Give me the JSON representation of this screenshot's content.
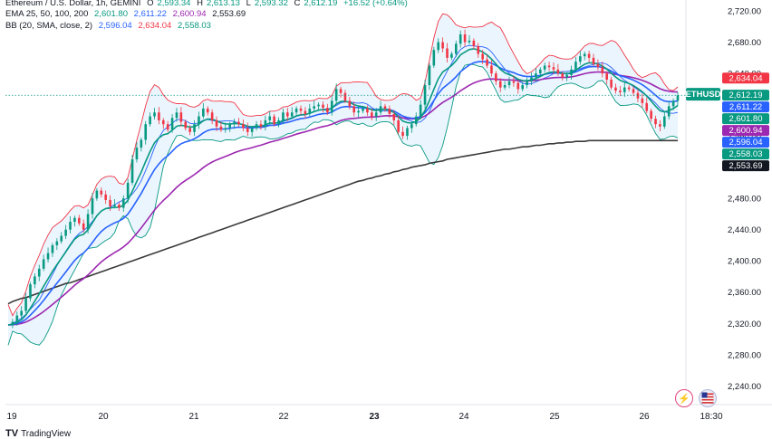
{
  "header": {
    "symbol_line": "Ethereum / U.S. Dollar, 1h, GEMINI",
    "ohlc": {
      "o_label": "O",
      "o": "2,593.34",
      "h_label": "H",
      "h": "2,613.13",
      "l_label": "L",
      "l": "2,593.32",
      "c_label": "C",
      "c": "2,612.19",
      "change": "+16.52 (+0.64%)"
    },
    "ema_line": {
      "label": "EMA 25, 50, 100, 200",
      "v1": "2,601.80",
      "v2": "2,611.22",
      "v3": "2,600.94",
      "v4": "2,553.69"
    },
    "bb_line": {
      "label": "BB (20, SMA, close, 2)",
      "v1": "2,596.04",
      "v2": "2,634.04",
      "v3": "2,558.03"
    }
  },
  "brand": {
    "name": "TradingView",
    "logo": "TV"
  },
  "icons": [
    "lightning-icon",
    "flag-us-icon"
  ],
  "colors": {
    "up": "#089981",
    "down": "#f23645",
    "ema25": "#089981",
    "ema50": "#2962ff",
    "ema100": "#9c27b0",
    "ema200": "#3a3a3a",
    "bb_upper": "#f23645",
    "bb_lower": "#089981",
    "bb_basis": "#2962ff",
    "bb_fill": "#e3f2fd"
  },
  "chart_data": {
    "type": "candlestick",
    "symbol": "ETHUSD",
    "x_ticks": [
      "19",
      "20",
      "21",
      "22",
      "23",
      "24",
      "25",
      "26",
      "18:30"
    ],
    "y_ticks": [
      "2,720.00",
      "2,680.00",
      "2,640.00",
      "2,600.00",
      "2,560.00",
      "2,520.00",
      "2,480.00",
      "2,440.00",
      "2,400.00",
      "2,360.00",
      "2,320.00",
      "2,280.00",
      "2,240.00"
    ],
    "ylim": [
      2216,
      2734
    ],
    "price_labels": [
      {
        "text": "2,634.04",
        "value": 2634.04,
        "color": "#f23645"
      },
      {
        "text": "ETHUSD",
        "value": 2612.19,
        "color": "#089981",
        "symbol": true
      },
      {
        "text": "2,612.19",
        "value": 2612.19,
        "color": "#089981"
      },
      {
        "text": "2,611.22",
        "value": 2611.22,
        "color": "#2962ff"
      },
      {
        "text": "2,601.80",
        "value": 2601.8,
        "color": "#089981"
      },
      {
        "text": "2,600.94",
        "value": 2600.94,
        "color": "#9c27b0"
      },
      {
        "text": "2,596.04",
        "value": 2596.04,
        "color": "#2962ff"
      },
      {
        "text": "2,558.03",
        "value": 2558.03,
        "color": "#089981"
      },
      {
        "text": "2,553.69",
        "value": 2553.69,
        "color": "#131722"
      }
    ],
    "close": [
      2318,
      2322,
      2330,
      2336,
      2352,
      2370,
      2380,
      2390,
      2402,
      2410,
      2420,
      2425,
      2432,
      2440,
      2450,
      2455,
      2448,
      2440,
      2460,
      2480,
      2490,
      2485,
      2478,
      2470,
      2472,
      2468,
      2480,
      2500,
      2530,
      2545,
      2555,
      2575,
      2585,
      2590,
      2580,
      2575,
      2568,
      2583,
      2590,
      2578,
      2570,
      2565,
      2575,
      2585,
      2595,
      2590,
      2580,
      2572,
      2568,
      2570,
      2575,
      2578,
      2575,
      2570,
      2565,
      2570,
      2575,
      2572,
      2580,
      2585,
      2575,
      2580,
      2590,
      2585,
      2590,
      2595,
      2592,
      2588,
      2595,
      2598,
      2600,
      2596,
      2590,
      2605,
      2620,
      2615,
      2605,
      2598,
      2590,
      2592,
      2595,
      2590,
      2585,
      2590,
      2598,
      2595,
      2588,
      2580,
      2565,
      2560,
      2570,
      2575,
      2585,
      2600,
      2625,
      2650,
      2670,
      2680,
      2672,
      2660,
      2665,
      2678,
      2690,
      2680,
      2682,
      2675,
      2665,
      2658,
      2650,
      2640,
      2630,
      2622,
      2625,
      2630,
      2628,
      2620,
      2625,
      2630,
      2635,
      2640,
      2645,
      2650,
      2648,
      2645,
      2640,
      2635,
      2638,
      2645,
      2655,
      2662,
      2665,
      2660,
      2652,
      2648,
      2640,
      2632,
      2622,
      2618,
      2616,
      2622,
      2620,
      2615,
      2608,
      2602,
      2592,
      2582,
      2575,
      2572,
      2585,
      2598,
      2605,
      2612
    ],
    "ema200": [
      2345,
      2348,
      2350,
      2352,
      2353,
      2355,
      2357,
      2359,
      2361,
      2363,
      2365,
      2367,
      2369,
      2371,
      2372,
      2374,
      2376,
      2378,
      2380,
      2382,
      2384,
      2386,
      2388,
      2390,
      2392,
      2394,
      2396,
      2398,
      2400,
      2402,
      2404,
      2406,
      2408,
      2410,
      2412,
      2414,
      2416,
      2418,
      2420,
      2422,
      2424,
      2426,
      2428,
      2430,
      2432,
      2434,
      2436,
      2438,
      2440,
      2442,
      2444,
      2446,
      2448,
      2450,
      2452,
      2454,
      2456,
      2458,
      2460,
      2462,
      2464,
      2466,
      2468,
      2470,
      2472,
      2474,
      2476,
      2478,
      2480,
      2482,
      2484,
      2486,
      2488,
      2490,
      2492,
      2494,
      2496,
      2498,
      2500,
      2502,
      2503,
      2505,
      2506,
      2508,
      2509,
      2511,
      2512,
      2514,
      2515,
      2517,
      2518,
      2520,
      2521,
      2522,
      2523,
      2525,
      2526,
      2527,
      2528,
      2530,
      2531,
      2532,
      2533,
      2534,
      2535,
      2536,
      2537,
      2538,
      2539,
      2540,
      2541,
      2542,
      2543,
      2543,
      2544,
      2545,
      2546,
      2546,
      2547,
      2548,
      2548,
      2549,
      2550,
      2550,
      2551,
      2551,
      2552,
      2552,
      2553,
      2553,
      2553,
      2554,
      2554,
      2554,
      2554,
      2554,
      2554,
      2554,
      2554,
      2554,
      2554,
      2554,
      2554,
      2554,
      2554,
      2554,
      2554,
      2554,
      2554,
      2554,
      2554,
      2554
    ]
  }
}
